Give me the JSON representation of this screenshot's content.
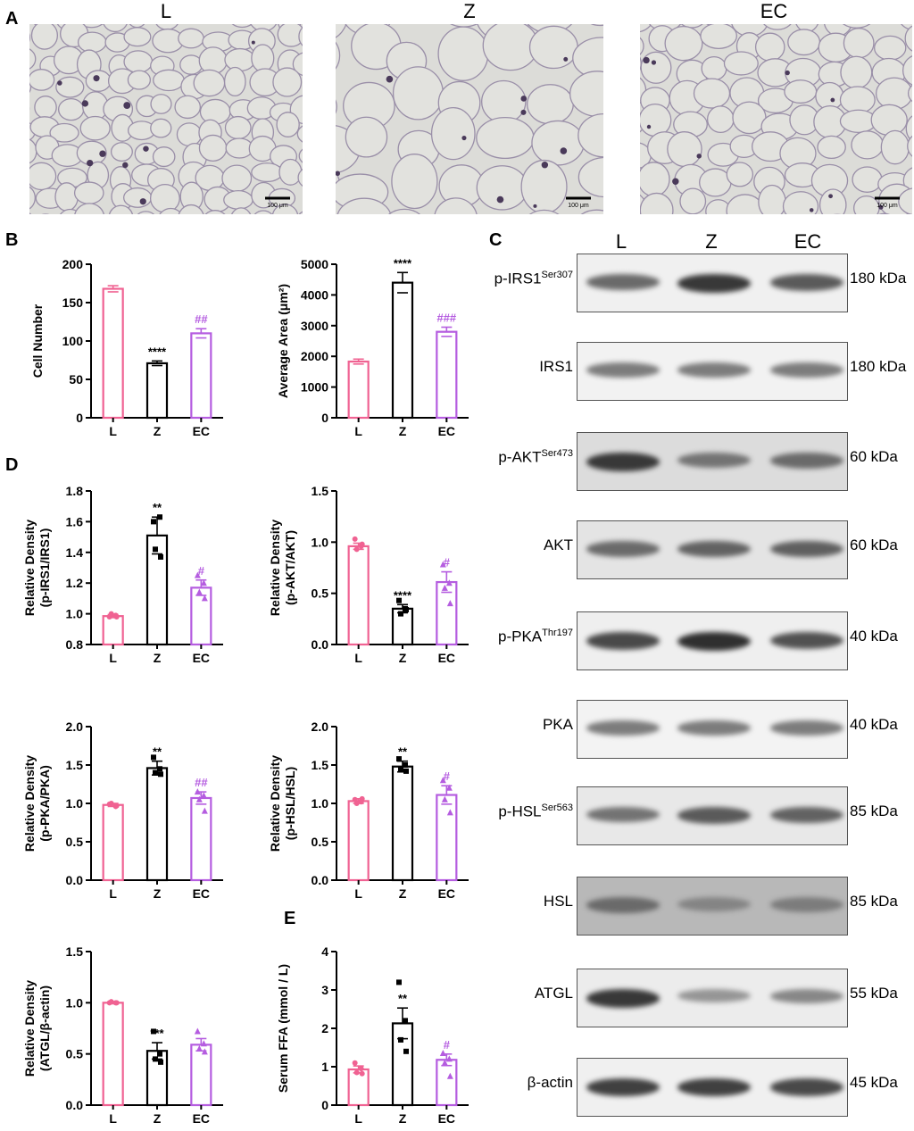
{
  "panels": {
    "A": "A",
    "B": "B",
    "C": "C",
    "D": "D",
    "E": "E"
  },
  "histology": {
    "groups": [
      "L",
      "Z",
      "EC"
    ],
    "scale_bar": "100 μm"
  },
  "western": {
    "groups": [
      "L",
      "Z",
      "EC"
    ],
    "rows": [
      {
        "name": "p-IRS1",
        "sup": "Ser307",
        "kda": "180 kDa",
        "intensities": [
          0.55,
          0.85,
          0.65
        ],
        "bg": "#f0f0f0"
      },
      {
        "name": "IRS1",
        "sup": "",
        "kda": "180 kDa",
        "intensities": [
          0.45,
          0.45,
          0.45
        ],
        "bg": "#f2f2f2"
      },
      {
        "name": "p-AKT",
        "sup": "Ser473",
        "kda": "60 kDa",
        "intensities": [
          0.85,
          0.5,
          0.55
        ],
        "bg": "#dcdcdc"
      },
      {
        "name": "AKT",
        "sup": "",
        "kda": "60 kDa",
        "intensities": [
          0.55,
          0.6,
          0.62
        ],
        "bg": "#e4e4e4"
      },
      {
        "name": "p-PKA",
        "sup": "Thr197",
        "kda": "40 kDa",
        "intensities": [
          0.75,
          0.9,
          0.7
        ],
        "bg": "#efefef"
      },
      {
        "name": "PKA",
        "sup": "",
        "kda": "40 kDa",
        "intensities": [
          0.45,
          0.45,
          0.45
        ],
        "bg": "#f3f3f3"
      },
      {
        "name": "p-HSL",
        "sup": "Ser563",
        "kda": "85 kDa",
        "intensities": [
          0.5,
          0.65,
          0.6
        ],
        "bg": "#e8e8e8"
      },
      {
        "name": "HSL",
        "sup": "",
        "kda": "85 kDa",
        "intensities": [
          0.55,
          0.4,
          0.45
        ],
        "bg": "#b8b8b8"
      },
      {
        "name": "ATGL",
        "sup": "",
        "kda": "55 kDa",
        "intensities": [
          0.85,
          0.3,
          0.38
        ],
        "bg": "#ececec"
      },
      {
        "name": "β-actin",
        "sup": "",
        "kda": "45 kDa",
        "intensities": [
          0.8,
          0.8,
          0.75
        ],
        "bg": "#f0f0f0"
      }
    ]
  },
  "colors": {
    "L": "#f06292",
    "Z": "#000000",
    "EC": "#b55de0"
  },
  "chart_data": [
    {
      "id": "b1",
      "type": "bar",
      "categories": [
        "L",
        "Z",
        "EC"
      ],
      "values": [
        168,
        71,
        110
      ],
      "errors": [
        4,
        3,
        6
      ],
      "ylabel": "Cell Number",
      "ylim": [
        0,
        200
      ],
      "yticks": [
        "0",
        "50",
        "100",
        "150",
        "200"
      ],
      "annotations": [
        "",
        "****",
        "##"
      ],
      "points": [
        [],
        [],
        []
      ]
    },
    {
      "id": "b2",
      "type": "bar",
      "categories": [
        "L",
        "Z",
        "EC"
      ],
      "values": [
        1830,
        4400,
        2800
      ],
      "errors": [
        80,
        330,
        150
      ],
      "ylabel": "Average Area (μm²)",
      "ylim": [
        0,
        5000
      ],
      "yticks": [
        "0",
        "1000",
        "2000",
        "3000",
        "4000",
        "5000"
      ],
      "annotations": [
        "",
        "****",
        "###"
      ],
      "points": [
        [],
        [],
        []
      ]
    },
    {
      "id": "d1",
      "type": "bar",
      "categories": [
        "L",
        "Z",
        "EC"
      ],
      "values": [
        0.985,
        1.51,
        1.17
      ],
      "errors": [
        0.01,
        0.12,
        0.05
      ],
      "ylabel": "Relative Density\n(p-IRS1/IRS1)",
      "ylim": [
        0.8,
        1.8
      ],
      "yticks": [
        "0.8",
        "1.0",
        "1.2",
        "1.4",
        "1.6",
        "1.8"
      ],
      "annotations": [
        "",
        "**",
        "#"
      ],
      "points": [
        [
          0.98,
          0.99,
          1.0,
          0.98
        ],
        [
          1.6,
          1.63,
          1.42,
          1.37
        ],
        [
          1.25,
          1.2,
          1.14,
          1.1
        ]
      ]
    },
    {
      "id": "d2",
      "type": "bar",
      "categories": [
        "L",
        "Z",
        "EC"
      ],
      "values": [
        0.96,
        0.35,
        0.61
      ],
      "errors": [
        0.03,
        0.04,
        0.1
      ],
      "ylabel": "Relative Density\n(p-AKT/AKT)",
      "ylim": [
        0,
        1.5
      ],
      "yticks": [
        "0.0",
        "0.5",
        "1.0",
        "1.5"
      ],
      "annotations": [
        "",
        "****",
        "#"
      ],
      "points": [
        [
          1.03,
          0.96,
          0.93,
          0.98
        ],
        [
          0.43,
          0.35,
          0.3,
          0.34
        ],
        [
          0.78,
          0.6,
          0.55,
          0.4
        ]
      ]
    },
    {
      "id": "d3",
      "type": "bar",
      "categories": [
        "L",
        "Z",
        "EC"
      ],
      "values": [
        0.98,
        1.46,
        1.07
      ],
      "errors": [
        0.02,
        0.09,
        0.08
      ],
      "ylabel": "Relative Density\n(p-PKA/PKA)",
      "ylim": [
        0,
        2.0
      ],
      "yticks": [
        "0.0",
        "0.5",
        "1.0",
        "1.5",
        "2.0"
      ],
      "annotations": [
        "",
        "**",
        "##"
      ],
      "points": [
        [
          0.99,
          0.96,
          1.0,
          0.97
        ],
        [
          1.6,
          1.45,
          1.4,
          1.38
        ],
        [
          1.15,
          1.1,
          1.05,
          0.9
        ]
      ]
    },
    {
      "id": "d4",
      "type": "bar",
      "categories": [
        "L",
        "Z",
        "EC"
      ],
      "values": [
        1.03,
        1.48,
        1.11
      ],
      "errors": [
        0.03,
        0.07,
        0.12
      ],
      "ylabel": "Relative Density\n(p-HSL/HSL)",
      "ylim": [
        0,
        2.0
      ],
      "yticks": [
        "0.0",
        "0.5",
        "1.0",
        "1.5",
        "2.0"
      ],
      "annotations": [
        "",
        "**",
        "#"
      ],
      "points": [
        [
          1.05,
          1.02,
          1.0,
          1.06
        ],
        [
          1.58,
          1.5,
          1.44,
          1.42
        ],
        [
          1.3,
          1.2,
          1.05,
          0.88
        ]
      ]
    },
    {
      "id": "d5",
      "type": "bar",
      "categories": [
        "L",
        "Z",
        "EC"
      ],
      "values": [
        1.0,
        0.53,
        0.59
      ],
      "errors": [
        0.01,
        0.08,
        0.06
      ],
      "ylabel": "Relative Density\n(ATGL/β-actin)",
      "ylim": [
        0,
        1.5
      ],
      "yticks": [
        "0.0",
        "0.5",
        "1.0",
        "1.5"
      ],
      "annotations": [
        "",
        "***",
        ""
      ],
      "points": [
        [
          1.0,
          1.0,
          1.01,
          1.0
        ],
        [
          0.72,
          0.5,
          0.45,
          0.42
        ],
        [
          0.72,
          0.6,
          0.55,
          0.52
        ]
      ]
    },
    {
      "id": "e1",
      "type": "bar",
      "categories": [
        "L",
        "Z",
        "EC"
      ],
      "values": [
        0.93,
        2.13,
        1.18
      ],
      "errors": [
        0.09,
        0.4,
        0.15
      ],
      "ylabel": "Serum FFA (mmol / L)",
      "ylim": [
        0,
        4
      ],
      "yticks": [
        "0",
        "1",
        "2",
        "3",
        "4"
      ],
      "annotations": [
        "",
        "**",
        "#"
      ],
      "points": [
        [
          1.1,
          0.95,
          0.85,
          0.82
        ],
        [
          3.2,
          2.2,
          1.7,
          1.4
        ],
        [
          1.35,
          1.2,
          1.1,
          0.75
        ]
      ]
    }
  ]
}
